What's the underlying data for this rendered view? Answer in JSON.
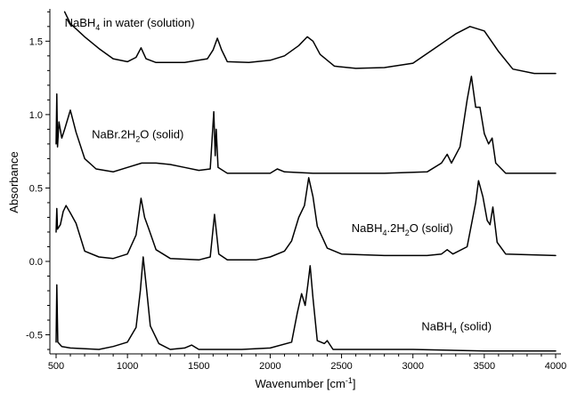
{
  "chart_data": {
    "type": "line",
    "xlabel": "Wavenumber [cm",
    "xlabel_sup": "-1",
    "xlabel_end": "]",
    "ylabel": "Absorbance",
    "xlim": [
      500,
      4000
    ],
    "ylim": [
      -0.63,
      1.72
    ],
    "x_ticks": [
      500,
      1000,
      1500,
      2000,
      2500,
      3000,
      3500,
      4000
    ],
    "y_ticks": [
      -0.5,
      0.0,
      0.5,
      1.0,
      1.5
    ],
    "x_tick_labels": [
      "500",
      "1000",
      "1500",
      "2000",
      "2500",
      "3000",
      "3500",
      "4000"
    ],
    "y_tick_labels": [
      "-0.5",
      "0.0",
      "0.5",
      "1.0",
      "1.5"
    ],
    "series": [
      {
        "name_parts": [
          {
            "t": "NaBH"
          },
          {
            "t": "4",
            "sub": true
          },
          {
            "t": " in water (solution)"
          }
        ],
        "label_at": [
          560,
          1.6
        ],
        "points": [
          [
            560,
            1.7
          ],
          [
            600,
            1.62
          ],
          [
            700,
            1.53
          ],
          [
            800,
            1.45
          ],
          [
            900,
            1.38
          ],
          [
            1000,
            1.36
          ],
          [
            1060,
            1.39
          ],
          [
            1095,
            1.455
          ],
          [
            1130,
            1.38
          ],
          [
            1200,
            1.355
          ],
          [
            1400,
            1.355
          ],
          [
            1560,
            1.38
          ],
          [
            1600,
            1.44
          ],
          [
            1630,
            1.52
          ],
          [
            1660,
            1.44
          ],
          [
            1700,
            1.36
          ],
          [
            1850,
            1.355
          ],
          [
            2000,
            1.37
          ],
          [
            2100,
            1.4
          ],
          [
            2200,
            1.47
          ],
          [
            2260,
            1.53
          ],
          [
            2300,
            1.5
          ],
          [
            2350,
            1.41
          ],
          [
            2450,
            1.33
          ],
          [
            2600,
            1.315
          ],
          [
            2800,
            1.32
          ],
          [
            3000,
            1.35
          ],
          [
            3150,
            1.45
          ],
          [
            3300,
            1.55
          ],
          [
            3400,
            1.6
          ],
          [
            3500,
            1.57
          ],
          [
            3600,
            1.43
          ],
          [
            3700,
            1.31
          ],
          [
            3850,
            1.28
          ],
          [
            4000,
            1.28
          ]
        ]
      },
      {
        "name_parts": [
          {
            "t": "NaBr.2H"
          },
          {
            "t": "2",
            "sub": true
          },
          {
            "t": "O (solid)"
          }
        ],
        "label_at": [
          750,
          0.84
        ],
        "points": [
          [
            500,
            0.8
          ],
          [
            505,
            1.14
          ],
          [
            510,
            0.78
          ],
          [
            520,
            0.95
          ],
          [
            540,
            0.84
          ],
          [
            560,
            0.9
          ],
          [
            600,
            1.03
          ],
          [
            640,
            0.88
          ],
          [
            700,
            0.7
          ],
          [
            780,
            0.63
          ],
          [
            900,
            0.61
          ],
          [
            1000,
            0.64
          ],
          [
            1100,
            0.67
          ],
          [
            1200,
            0.67
          ],
          [
            1300,
            0.66
          ],
          [
            1400,
            0.64
          ],
          [
            1500,
            0.62
          ],
          [
            1580,
            0.63
          ],
          [
            1605,
            1.02
          ],
          [
            1615,
            0.72
          ],
          [
            1622,
            0.9
          ],
          [
            1635,
            0.64
          ],
          [
            1700,
            0.6
          ],
          [
            1800,
            0.6
          ],
          [
            2000,
            0.6
          ],
          [
            2050,
            0.63
          ],
          [
            2100,
            0.61
          ],
          [
            2300,
            0.6
          ],
          [
            2800,
            0.6
          ],
          [
            3100,
            0.61
          ],
          [
            3200,
            0.67
          ],
          [
            3240,
            0.73
          ],
          [
            3270,
            0.67
          ],
          [
            3330,
            0.78
          ],
          [
            3380,
            1.1
          ],
          [
            3410,
            1.26
          ],
          [
            3440,
            1.05
          ],
          [
            3470,
            1.05
          ],
          [
            3500,
            0.87
          ],
          [
            3530,
            0.8
          ],
          [
            3555,
            0.84
          ],
          [
            3580,
            0.67
          ],
          [
            3650,
            0.6
          ],
          [
            3800,
            0.6
          ],
          [
            4000,
            0.6
          ]
        ]
      },
      {
        "name_parts": [
          {
            "t": "NaBH"
          },
          {
            "t": "4",
            "sub": true
          },
          {
            "t": ".2H"
          },
          {
            "t": "2",
            "sub": true
          },
          {
            "t": "O (solid)"
          }
        ],
        "label_at": [
          2570,
          0.2
        ],
        "points": [
          [
            500,
            0.2
          ],
          [
            505,
            0.36
          ],
          [
            510,
            0.22
          ],
          [
            530,
            0.25
          ],
          [
            550,
            0.34
          ],
          [
            570,
            0.38
          ],
          [
            600,
            0.33
          ],
          [
            640,
            0.26
          ],
          [
            700,
            0.07
          ],
          [
            800,
            0.03
          ],
          [
            900,
            0.02
          ],
          [
            1000,
            0.05
          ],
          [
            1060,
            0.18
          ],
          [
            1095,
            0.43
          ],
          [
            1120,
            0.3
          ],
          [
            1150,
            0.22
          ],
          [
            1200,
            0.08
          ],
          [
            1300,
            0.02
          ],
          [
            1500,
            0.01
          ],
          [
            1580,
            0.03
          ],
          [
            1610,
            0.32
          ],
          [
            1640,
            0.05
          ],
          [
            1700,
            0.01
          ],
          [
            1900,
            0.01
          ],
          [
            2000,
            0.03
          ],
          [
            2100,
            0.07
          ],
          [
            2150,
            0.14
          ],
          [
            2200,
            0.3
          ],
          [
            2240,
            0.38
          ],
          [
            2270,
            0.57
          ],
          [
            2300,
            0.44
          ],
          [
            2330,
            0.24
          ],
          [
            2400,
            0.09
          ],
          [
            2500,
            0.05
          ],
          [
            2800,
            0.04
          ],
          [
            3100,
            0.04
          ],
          [
            3200,
            0.05
          ],
          [
            3240,
            0.08
          ],
          [
            3280,
            0.05
          ],
          [
            3380,
            0.1
          ],
          [
            3440,
            0.4
          ],
          [
            3460,
            0.55
          ],
          [
            3490,
            0.44
          ],
          [
            3520,
            0.28
          ],
          [
            3540,
            0.25
          ],
          [
            3560,
            0.37
          ],
          [
            3590,
            0.13
          ],
          [
            3650,
            0.05
          ],
          [
            4000,
            0.04
          ]
        ]
      },
      {
        "name_parts": [
          {
            "t": "NaBH"
          },
          {
            "t": "4",
            "sub": true
          },
          {
            "t": " (solid)"
          }
        ],
        "label_at": [
          3060,
          -0.47
        ],
        "points": [
          [
            500,
            -0.55
          ],
          [
            505,
            -0.16
          ],
          [
            512,
            -0.55
          ],
          [
            540,
            -0.58
          ],
          [
            600,
            -0.59
          ],
          [
            800,
            -0.6
          ],
          [
            900,
            -0.58
          ],
          [
            1000,
            -0.55
          ],
          [
            1060,
            -0.45
          ],
          [
            1090,
            -0.2
          ],
          [
            1110,
            0.03
          ],
          [
            1135,
            -0.2
          ],
          [
            1160,
            -0.44
          ],
          [
            1220,
            -0.56
          ],
          [
            1300,
            -0.6
          ],
          [
            1400,
            -0.59
          ],
          [
            1450,
            -0.57
          ],
          [
            1500,
            -0.6
          ],
          [
            1800,
            -0.6
          ],
          [
            2000,
            -0.59
          ],
          [
            2150,
            -0.55
          ],
          [
            2190,
            -0.35
          ],
          [
            2220,
            -0.22
          ],
          [
            2245,
            -0.3
          ],
          [
            2265,
            -0.15
          ],
          [
            2280,
            -0.03
          ],
          [
            2300,
            -0.25
          ],
          [
            2330,
            -0.54
          ],
          [
            2380,
            -0.56
          ],
          [
            2400,
            -0.54
          ],
          [
            2440,
            -0.6
          ],
          [
            2600,
            -0.6
          ],
          [
            3000,
            -0.6
          ],
          [
            3500,
            -0.61
          ],
          [
            4000,
            -0.61
          ]
        ]
      }
    ]
  }
}
